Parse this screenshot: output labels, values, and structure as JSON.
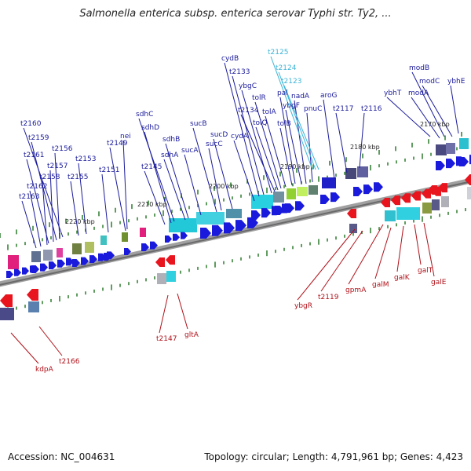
{
  "title": "Salmonella enterica subsp. enterica serovar Typhi str. Ty2, ...",
  "footer": {
    "accession": "Accession: NC_004631",
    "summary": "Topology: circular; Length: 4,791,961 bp; Genes: 4,423"
  },
  "colors": {
    "forward_gene": "#1a1adc",
    "reverse_gene": "#e8141e",
    "forward_label": "#1a1a9c",
    "reverse_label": "#b01018",
    "rna_label": "#3cb4d8",
    "backbone": "#888888",
    "tick": "#2a7a2a"
  },
  "kbp_marks": [
    "2170 kbp",
    "2180 kbp",
    "2190 kbp",
    "2200 kbp",
    "2210 kbp",
    "2220 kbp"
  ],
  "forward_labels": [
    "t2163",
    "t2162",
    "t2158",
    "t2161",
    "t2157",
    "t2159",
    "t2156",
    "t2160",
    "t2155",
    "t2153",
    "t2151",
    "t2149",
    "nei",
    "t2145",
    "sdhD",
    "sdhC",
    "sdhA",
    "sdhB",
    "sucA",
    "sucB",
    "sucC",
    "sucD",
    "cydA",
    "cydB",
    "t2133",
    "ybgC",
    "t2134",
    "tolQ",
    "tolR",
    "tolA",
    "tolB",
    "pal",
    "ybgF",
    "nadA",
    "pnuC",
    "aroG",
    "t2117",
    "t2116",
    "ybhT",
    "modA",
    "modB",
    "modC",
    "ybhE"
  ],
  "rna_labels": [
    "t2125",
    "t2124",
    "t2123"
  ],
  "reverse_labels": [
    "kdpA",
    "t2166",
    "t2147",
    "gltA",
    "ybgR",
    "t2119",
    "gpmA",
    "galM",
    "galK",
    "galT",
    "galE"
  ]
}
